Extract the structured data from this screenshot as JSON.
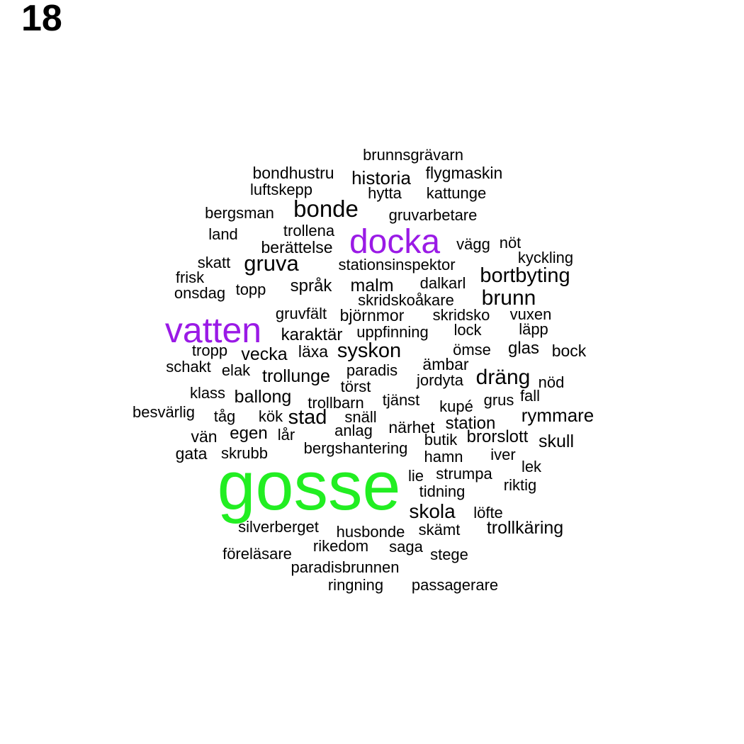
{
  "panel_label": "18",
  "colors": {
    "highlight_purple": "#9A1AE6",
    "highlight_green": "#22EE22",
    "default": "#000000"
  },
  "words": [
    {
      "text": "brunnsgrävarn"
    },
    {
      "text": "bondhustru"
    },
    {
      "text": "historia"
    },
    {
      "text": "flygmaskin"
    },
    {
      "text": "luftskepp"
    },
    {
      "text": "hytta"
    },
    {
      "text": "kattunge"
    },
    {
      "text": "bergsman"
    },
    {
      "text": "bonde"
    },
    {
      "text": "gruvarbetare"
    },
    {
      "text": "land"
    },
    {
      "text": "trollena"
    },
    {
      "text": "docka",
      "color": "purple"
    },
    {
      "text": "vägg"
    },
    {
      "text": "nöt"
    },
    {
      "text": "berättelse"
    },
    {
      "text": "skatt"
    },
    {
      "text": "gruva"
    },
    {
      "text": "stationsinspektor"
    },
    {
      "text": "kyckling"
    },
    {
      "text": "frisk"
    },
    {
      "text": "bortbyting"
    },
    {
      "text": "onsdag"
    },
    {
      "text": "topp"
    },
    {
      "text": "språk"
    },
    {
      "text": "malm"
    },
    {
      "text": "dalkarl"
    },
    {
      "text": "skridskoåkare"
    },
    {
      "text": "brunn"
    },
    {
      "text": "gruvfält"
    },
    {
      "text": "björnmor"
    },
    {
      "text": "skridsko"
    },
    {
      "text": "vuxen"
    },
    {
      "text": "vatten",
      "color": "purple"
    },
    {
      "text": "karaktär"
    },
    {
      "text": "uppfinning"
    },
    {
      "text": "lock"
    },
    {
      "text": "läpp"
    },
    {
      "text": "tropp"
    },
    {
      "text": "vecka"
    },
    {
      "text": "läxa"
    },
    {
      "text": "syskon"
    },
    {
      "text": "ömse"
    },
    {
      "text": "glas"
    },
    {
      "text": "bock"
    },
    {
      "text": "schakt"
    },
    {
      "text": "elak"
    },
    {
      "text": "trollunge"
    },
    {
      "text": "paradis"
    },
    {
      "text": "ämbar"
    },
    {
      "text": "jordyta"
    },
    {
      "text": "dräng"
    },
    {
      "text": "nöd"
    },
    {
      "text": "törst"
    },
    {
      "text": "klass"
    },
    {
      "text": "ballong"
    },
    {
      "text": "trollbarn"
    },
    {
      "text": "tjänst"
    },
    {
      "text": "grus"
    },
    {
      "text": "fall"
    },
    {
      "text": "kupé"
    },
    {
      "text": "besvärlig"
    },
    {
      "text": "tåg"
    },
    {
      "text": "kök"
    },
    {
      "text": "stad"
    },
    {
      "text": "snäll"
    },
    {
      "text": "rymmare"
    },
    {
      "text": "station"
    },
    {
      "text": "närhet"
    },
    {
      "text": "vän"
    },
    {
      "text": "egen"
    },
    {
      "text": "lår"
    },
    {
      "text": "anlag"
    },
    {
      "text": "butik"
    },
    {
      "text": "brorslott"
    },
    {
      "text": "skull"
    },
    {
      "text": "gata"
    },
    {
      "text": "skrubb"
    },
    {
      "text": "bergshantering"
    },
    {
      "text": "hamn"
    },
    {
      "text": "iver"
    },
    {
      "text": "lek"
    },
    {
      "text": "gosse",
      "color": "green"
    },
    {
      "text": "lie"
    },
    {
      "text": "strumpa"
    },
    {
      "text": "riktig"
    },
    {
      "text": "tidning"
    },
    {
      "text": "skola"
    },
    {
      "text": "löfte"
    },
    {
      "text": "silverberget"
    },
    {
      "text": "husbonde"
    },
    {
      "text": "skämt"
    },
    {
      "text": "trollkäring"
    },
    {
      "text": "rikedom"
    },
    {
      "text": "saga"
    },
    {
      "text": "föreläsare"
    },
    {
      "text": "stege"
    },
    {
      "text": "paradisbrunnen"
    },
    {
      "text": "ringning"
    },
    {
      "text": "passagerare"
    }
  ]
}
